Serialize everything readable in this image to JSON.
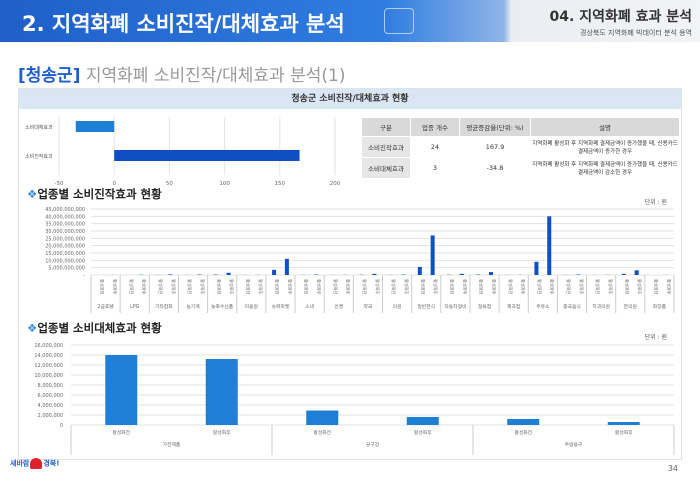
{
  "header": {
    "title": "2. 지역화폐 소비진작/대체효과 분석",
    "section": "04. 지역화폐 효과 분석",
    "subtitle": "경상북도 지역화폐 빅데이터 분석 용역"
  },
  "page_title": {
    "region": "[청송군]",
    "text": " 지역화폐 소비진작/대체효과 분석(1)"
  },
  "panel_title": "청송군 소비진작/대체효과 현황",
  "summary_table": {
    "headers": [
      "구분",
      "업종 개수",
      "평균증감율(단위: %)",
      "설명"
    ],
    "rows": [
      [
        "소비진작효과",
        "24",
        "167.9",
        "지역화폐 활성화 후 지역화폐 결제금액이 증가했을 때, 신용카드 결제금액이 증가한 경우"
      ],
      [
        "소비대체효과",
        "3",
        "-34.8",
        "지역화폐 활성화 후 지역화폐 결제금액이 증가했을 때, 신용카드 결제금액이 감소한 경우"
      ]
    ]
  },
  "section1": "업종별 소비진작효과 현황",
  "section2": "업종별 소비대체효과 현황",
  "unit1": "단위 : 원",
  "unit2": "단위 : 원",
  "footer": {
    "logo_text": "새바람 행복경북",
    "page": "34"
  },
  "chart_data": [
    {
      "type": "bar",
      "orientation": "horizontal",
      "categories": [
        "소비대체효과",
        "소비진작효과"
      ],
      "values": [
        -34.8,
        167.9
      ],
      "xlim": [
        -50,
        200
      ],
      "xticks": [
        "-50",
        "0",
        "50",
        "100",
        "150",
        "200"
      ],
      "colors": [
        "#1f7fd6",
        "#0e4fc4"
      ]
    },
    {
      "type": "bar",
      "title": "업종별 소비진작효과 현황",
      "series_labels": [
        "활성화전",
        "활성화후"
      ],
      "categories": [
        "2급호텔",
        "LPG",
        "기타잡화",
        "농기계",
        "농축수산품",
        "미용원",
        "슈퍼마켓",
        "스낵",
        "안경",
        "약국",
        "의원",
        "일반한식",
        "자동차정비",
        "정육점",
        "제과점",
        "주유소",
        "중국음식",
        "치과의원",
        "한의원",
        "화장품"
      ],
      "series": [
        {
          "name": "활성화전",
          "values": [
            0,
            0,
            0.1,
            0.1,
            0.3,
            0.05,
            3.5,
            0.1,
            0.05,
            0.2,
            0.1,
            5.5,
            0.2,
            0.3,
            0.1,
            9,
            0.1,
            0.05,
            0.8,
            0
          ]
        },
        {
          "name": "활성화후",
          "values": [
            0.05,
            0.2,
            0.4,
            0.3,
            1.5,
            0.1,
            11,
            0.3,
            0.1,
            0.8,
            0.3,
            27,
            0.8,
            2,
            0.1,
            40,
            0.3,
            0.1,
            3.2,
            0.05
          ]
        }
      ],
      "value_unit": "십억원",
      "ylim": [
        0,
        45
      ],
      "yticks": [
        "-",
        "5,000,000,000",
        "10,000,000,000",
        "15,000,000,000",
        "20,000,000,000",
        "25,000,000,000",
        "30,000,000,000",
        "35,000,000,000",
        "40,000,000,000",
        "45,000,000,000"
      ],
      "color": "#0e4fc4"
    },
    {
      "type": "bar",
      "title": "업종별 소비대체효과 현황",
      "categories": [
        "가전제품",
        "당구장",
        "주방용구"
      ],
      "series_labels": [
        "활성화전",
        "활성화후"
      ],
      "values": [
        [
          14000000,
          13200000
        ],
        [
          2900000,
          1600000
        ],
        [
          1200000,
          600000
        ]
      ],
      "ylim": [
        0,
        16000000
      ],
      "yticks": [
        "0",
        "2,000,000",
        "4,000,000",
        "6,000,000",
        "8,000,000",
        "10,000,000",
        "12,000,000",
        "14,000,000",
        "16,000,000"
      ],
      "color": "#1f7fd6"
    }
  ]
}
